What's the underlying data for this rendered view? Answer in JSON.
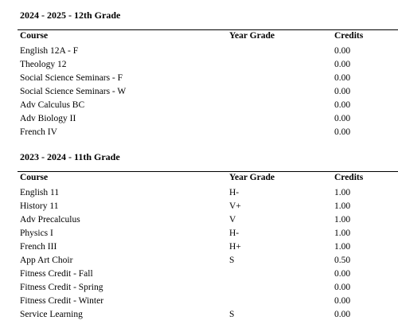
{
  "columns": {
    "course": "Course",
    "grade": "Year Grade",
    "credits": "Credits"
  },
  "sections": [
    {
      "title": "2024 - 2025 - 12th Grade",
      "rows": [
        {
          "course": "English 12A - F",
          "grade": "",
          "credits": "0.00"
        },
        {
          "course": "Theology 12",
          "grade": "",
          "credits": "0.00"
        },
        {
          "course": "Social Science Seminars - F",
          "grade": "",
          "credits": "0.00"
        },
        {
          "course": "Social Science Seminars - W",
          "grade": "",
          "credits": "0.00"
        },
        {
          "course": "Adv Calculus BC",
          "grade": "",
          "credits": "0.00"
        },
        {
          "course": "Adv Biology II",
          "grade": "",
          "credits": "0.00"
        },
        {
          "course": "French IV",
          "grade": "",
          "credits": "0.00"
        }
      ]
    },
    {
      "title": "2023 - 2024 - 11th Grade",
      "rows": [
        {
          "course": "English 11",
          "grade": "H-",
          "credits": "1.00"
        },
        {
          "course": "History 11",
          "grade": "V+",
          "credits": "1.00"
        },
        {
          "course": "Adv Precalculus",
          "grade": "V",
          "credits": "1.00"
        },
        {
          "course": "Physics I",
          "grade": "H-",
          "credits": "1.00"
        },
        {
          "course": "French III",
          "grade": "H+",
          "credits": "1.00"
        },
        {
          "course": "App Art Choir",
          "grade": "S",
          "credits": "0.50"
        },
        {
          "course": "Fitness Credit - Fall",
          "grade": "",
          "credits": "0.00"
        },
        {
          "course": "Fitness Credit - Spring",
          "grade": "",
          "credits": "0.00"
        },
        {
          "course": "Fitness Credit - Winter",
          "grade": "",
          "credits": "0.00"
        },
        {
          "course": "Service Learning",
          "grade": "S",
          "credits": "0.00"
        }
      ]
    }
  ]
}
